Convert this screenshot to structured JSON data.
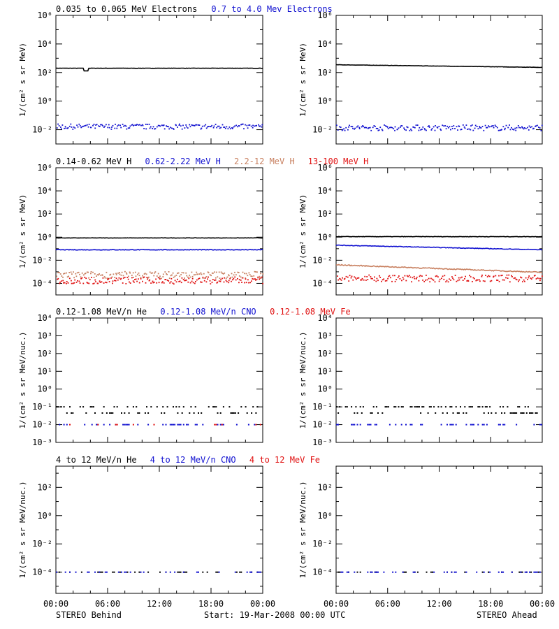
{
  "colors": {
    "black": "#000000",
    "blue": "#1010d0",
    "tan": "#c88060",
    "red": "#e01010"
  },
  "footer": {
    "left": "STEREO Behind",
    "center": "Start: 19-Mar-2008 00:00 UTC",
    "right": "STEREO Ahead"
  },
  "chart_data": [
    {
      "type": "scatter",
      "panel": "row1-behind",
      "yscale": "log",
      "ylim_exp": [
        -3,
        6
      ],
      "ytick_exp": [
        -2,
        0,
        2,
        4,
        6
      ],
      "ylabel": "1/(cm² s sr MeV)",
      "legend": [
        {
          "text": "0.035 to 0.065 MeV Electrons",
          "color": "black"
        },
        {
          "text": "0.7 to 4.0 Mev Electrons",
          "color": "blue"
        }
      ],
      "xticks": [
        "00:00",
        "06:00",
        "12:00",
        "18:00",
        "00:00"
      ],
      "series": [
        {
          "name": "0.035 to 0.065 MeV Electrons",
          "color": "black",
          "style": "line",
          "level": 200,
          "jitter": 0.02,
          "dip": {
            "x_hours": 3.5,
            "value": 130
          }
        },
        {
          "name": "0.7 to 4.0 Mev Electrons",
          "color": "blue",
          "style": "dots",
          "level": 0.018,
          "jitter": 0.18
        }
      ]
    },
    {
      "type": "scatter",
      "panel": "row1-ahead",
      "yscale": "log",
      "ylim_exp": [
        -3,
        6
      ],
      "ytick_exp": [
        -2,
        0,
        2,
        4,
        6
      ],
      "ylabel": "1/(cm² s sr MeV)",
      "legend": [],
      "xticks": [
        "00:00",
        "06:00",
        "12:00",
        "18:00",
        "00:00"
      ],
      "series": [
        {
          "color": "black",
          "style": "line",
          "level_start": 350,
          "level_end": 230,
          "jitter": 0.02
        },
        {
          "color": "blue",
          "style": "dots",
          "level": 0.015,
          "jitter": 0.2
        }
      ]
    },
    {
      "type": "scatter",
      "panel": "row2-behind",
      "yscale": "log",
      "ylim_exp": [
        -5,
        6
      ],
      "ytick_exp": [
        -4,
        -2,
        0,
        2,
        4,
        6
      ],
      "ylabel": "1/(cm² s sr MeV)",
      "legend": [
        {
          "text": "0.14-0.62 MeV H",
          "color": "black"
        },
        {
          "text": "0.62-2.22 MeV H",
          "color": "blue"
        },
        {
          "text": "2.2-12 MeV H",
          "color": "tan"
        },
        {
          "text": "13-100 MeV H",
          "color": "red"
        }
      ],
      "xticks": [
        "00:00",
        "06:00",
        "12:00",
        "18:00",
        "00:00"
      ],
      "series": [
        {
          "name": "0.14-0.62 MeV H",
          "color": "black",
          "style": "line",
          "level": 0.85,
          "jitter": 0.03
        },
        {
          "name": "0.62-2.22 MeV H",
          "color": "blue",
          "style": "line",
          "level": 0.08,
          "jitter": 0.05
        },
        {
          "name": "2.2-12 MeV H",
          "color": "tan",
          "style": "dots",
          "level": 0.0006,
          "jitter": 0.3
        },
        {
          "name": "13-100 MeV H",
          "color": "red",
          "style": "dots",
          "level": 0.0002,
          "jitter": 0.3
        }
      ]
    },
    {
      "type": "scatter",
      "panel": "row2-ahead",
      "yscale": "log",
      "ylim_exp": [
        -5,
        6
      ],
      "ytick_exp": [
        -4,
        -2,
        0,
        2,
        4,
        6
      ],
      "ylabel": "1/(cm² s sr MeV)",
      "legend": [],
      "xticks": [
        "00:00",
        "06:00",
        "12:00",
        "18:00",
        "00:00"
      ],
      "series": [
        {
          "color": "black",
          "style": "line",
          "level": 1.1,
          "jitter": 0.04
        },
        {
          "color": "blue",
          "style": "line",
          "level_start": 0.2,
          "level_end": 0.08,
          "jitter": 0.05
        },
        {
          "color": "tan",
          "style": "line",
          "level_start": 0.004,
          "level_end": 0.0009,
          "jitter": 0.08
        },
        {
          "color": "red",
          "style": "dots",
          "level": 0.0003,
          "jitter": 0.3
        }
      ]
    },
    {
      "type": "scatter",
      "panel": "row3-behind",
      "yscale": "log",
      "ylim_exp": [
        -3,
        4
      ],
      "ytick_exp": [
        -3,
        -2,
        -1,
        0,
        1,
        2,
        3,
        4
      ],
      "ylabel": "1/(cm² s sr MeV/nuc.)",
      "legend": [
        {
          "text": "0.12-1.08 MeV/n He",
          "color": "black"
        },
        {
          "text": "0.12-1.08 MeV/n CNO",
          "color": "blue"
        },
        {
          "text": "0.12-1.08 MeV Fe",
          "color": "red"
        }
      ],
      "xticks": [
        "00:00",
        "06:00",
        "12:00",
        "18:00",
        "00:00"
      ],
      "series": [
        {
          "name": "0.12-1.08 MeV/n He",
          "color": "black",
          "style": "sparse",
          "levels": [
            0.045,
            0.1
          ],
          "density": 0.55
        },
        {
          "name": "0.12-1.08 MeV/n CNO",
          "color": "blue",
          "style": "sparse",
          "levels": [
            0.01
          ],
          "density": 0.3
        },
        {
          "name": "0.12-1.08 MeV Fe",
          "color": "red",
          "style": "sparse",
          "levels": [
            0.01
          ],
          "density": 0.08
        }
      ]
    },
    {
      "type": "scatter",
      "panel": "row3-ahead",
      "yscale": "log",
      "ylim_exp": [
        -3,
        4
      ],
      "ytick_exp": [
        -3,
        -2,
        -1,
        0,
        1,
        2,
        3,
        4
      ],
      "ylabel": "1/(cm² s sr MeV/nuc.)",
      "legend": [],
      "xticks": [
        "00:00",
        "06:00",
        "12:00",
        "18:00",
        "00:00"
      ],
      "series": [
        {
          "color": "black",
          "style": "sparse",
          "levels": [
            0.045,
            0.1
          ],
          "density": 0.6
        },
        {
          "color": "blue",
          "style": "sparse",
          "levels": [
            0.01
          ],
          "density": 0.35
        }
      ]
    },
    {
      "type": "scatter",
      "panel": "row4-behind",
      "yscale": "log",
      "ylim_exp": [
        -5.5,
        3.5
      ],
      "ytick_exp": [
        -4,
        -2,
        0,
        2
      ],
      "ylabel": "1/(cm² s sr MeV/nuc.)",
      "legend": [
        {
          "text": "4 to 12 MeV/n He",
          "color": "black"
        },
        {
          "text": "4 to 12 MeV/n CNO",
          "color": "blue"
        },
        {
          "text": "4 to 12 MeV Fe",
          "color": "red"
        }
      ],
      "xticks": [
        "00:00",
        "06:00",
        "12:00",
        "18:00",
        "00:00"
      ],
      "series": [
        {
          "name": "4 to 12 MeV/n He",
          "color": "black",
          "style": "sparse",
          "levels": [
            0.0001
          ],
          "density": 0.25
        },
        {
          "name": "4 to 12 MeV/n CNO",
          "color": "blue",
          "style": "sparse",
          "levels": [
            0.0001
          ],
          "density": 0.2
        }
      ]
    },
    {
      "type": "scatter",
      "panel": "row4-ahead",
      "yscale": "log",
      "ylim_exp": [
        -5.5,
        3.5
      ],
      "ytick_exp": [
        -4,
        -2,
        0,
        2
      ],
      "ylabel": "1/(cm² s sr MeV/nuc.)",
      "legend": [],
      "xticks": [
        "00:00",
        "06:00",
        "12:00",
        "18:00",
        "00:00"
      ],
      "series": [
        {
          "color": "black",
          "style": "sparse",
          "levels": [
            0.0001
          ],
          "density": 0.2
        },
        {
          "color": "blue",
          "style": "sparse",
          "levels": [
            0.0001
          ],
          "density": 0.3
        }
      ]
    }
  ]
}
